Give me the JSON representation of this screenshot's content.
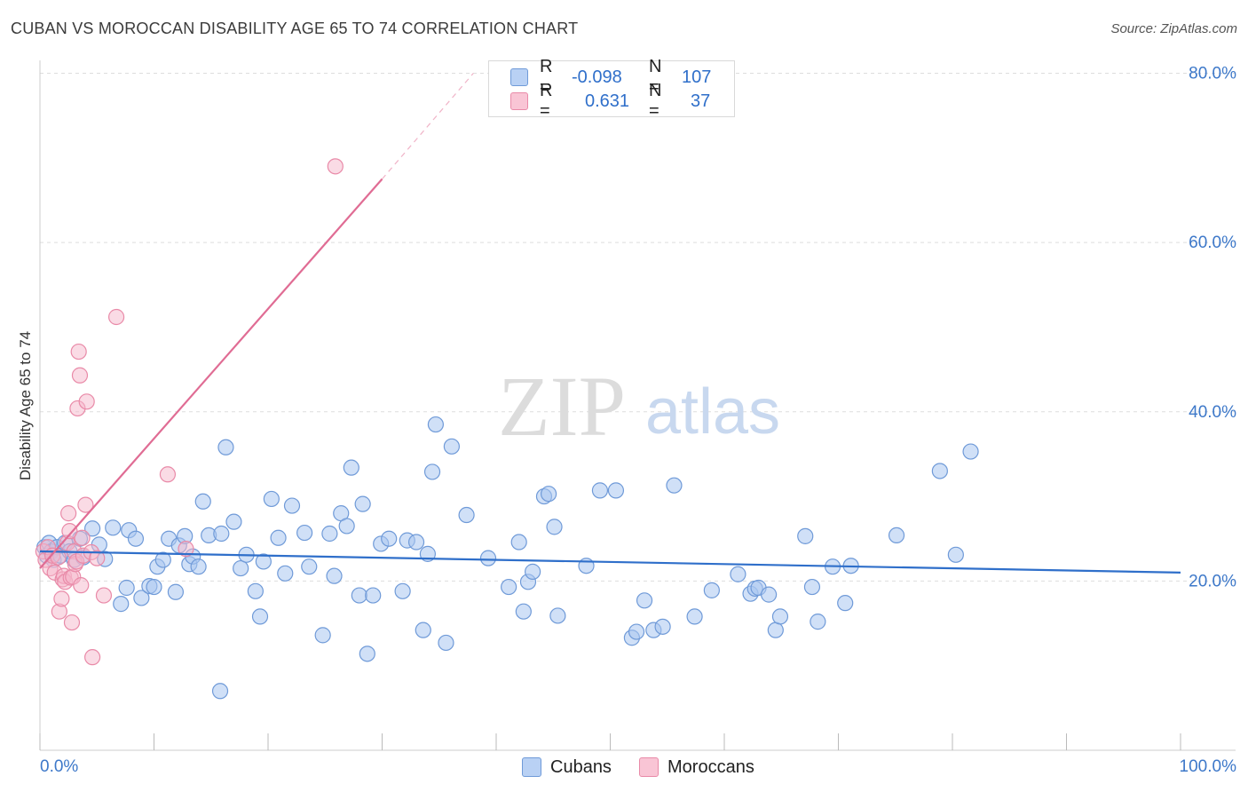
{
  "header": {
    "title": "CUBAN VS MOROCCAN DISABILITY AGE 65 TO 74 CORRELATION CHART",
    "source": "Source: ZipAtlas.com"
  },
  "watermark": {
    "zip": "ZIP",
    "atlas": "atlas"
  },
  "legend_top": {
    "rows": [
      {
        "r_label": "R =",
        "r_value": "-0.098",
        "n_label": "N =",
        "n_value": "107"
      },
      {
        "r_label": "R =",
        "r_value": "0.631",
        "n_label": "N =",
        "n_value": "37"
      }
    ]
  },
  "legend_bottom": {
    "cubans": "Cubans",
    "moroccans": "Moroccans"
  },
  "colors": {
    "cubans_fill": "#a9c6f0",
    "cubans_stroke": "#6f9ad8",
    "cubans_line": "#2f6fca",
    "moroccans_fill": "#f6b8cb",
    "moroccans_stroke": "#e98aa8",
    "moroccans_line": "#e06c94",
    "axis_label": "#3d78c9",
    "grid": "#dddddd"
  },
  "chart_data": {
    "type": "scatter",
    "title": "CUBAN VS MOROCCAN DISABILITY AGE 65 TO 74 CORRELATION CHART",
    "xlabel": "",
    "ylabel": "Disability Age 65 to 74",
    "xlim": [
      0,
      100
    ],
    "ylim": [
      0,
      80
    ],
    "x_tick_labels": [
      "0.0%",
      "100.0%"
    ],
    "y_ticks": [
      20,
      40,
      60,
      80
    ],
    "y_tick_labels": [
      "20.0%",
      "40.0%",
      "60.0%",
      "80.0%"
    ],
    "grid": true,
    "legend_placement": "bottom",
    "series": [
      {
        "name": "Cubans",
        "R": -0.098,
        "N": 107,
        "trend": {
          "x": [
            0,
            100
          ],
          "y": [
            23.5,
            21.0
          ]
        },
        "points": [
          [
            0.4,
            24.0
          ],
          [
            0.6,
            23.0
          ],
          [
            0.8,
            24.5
          ],
          [
            1.0,
            23.5
          ],
          [
            1.2,
            22.5
          ],
          [
            1.5,
            24.0
          ],
          [
            1.8,
            23.0
          ],
          [
            2.2,
            24.5
          ],
          [
            2.6,
            23.5
          ],
          [
            3.0,
            22.5
          ],
          [
            3.5,
            25.0
          ],
          [
            3.8,
            22.8
          ],
          [
            4.6,
            26.2
          ],
          [
            5.2,
            24.3
          ],
          [
            5.7,
            22.6
          ],
          [
            6.4,
            26.3
          ],
          [
            7.1,
            17.3
          ],
          [
            7.6,
            19.2
          ],
          [
            7.8,
            26.0
          ],
          [
            8.4,
            25.0
          ],
          [
            8.9,
            18.0
          ],
          [
            9.6,
            19.4
          ],
          [
            10.0,
            19.3
          ],
          [
            10.3,
            21.7
          ],
          [
            10.8,
            22.5
          ],
          [
            11.3,
            25.0
          ],
          [
            11.9,
            18.7
          ],
          [
            12.2,
            24.2
          ],
          [
            12.7,
            25.3
          ],
          [
            13.1,
            22.0
          ],
          [
            13.4,
            22.9
          ],
          [
            13.9,
            21.7
          ],
          [
            14.3,
            29.4
          ],
          [
            14.8,
            25.4
          ],
          [
            15.9,
            25.6
          ],
          [
            16.3,
            35.8
          ],
          [
            17.0,
            27.0
          ],
          [
            17.6,
            21.5
          ],
          [
            18.1,
            23.1
          ],
          [
            18.9,
            18.8
          ],
          [
            19.3,
            15.8
          ],
          [
            19.6,
            22.3
          ],
          [
            20.3,
            29.7
          ],
          [
            20.9,
            25.1
          ],
          [
            21.5,
            20.9
          ],
          [
            22.1,
            28.9
          ],
          [
            23.2,
            25.7
          ],
          [
            23.6,
            21.7
          ],
          [
            24.8,
            13.6
          ],
          [
            25.4,
            25.6
          ],
          [
            25.8,
            20.6
          ],
          [
            26.4,
            28.0
          ],
          [
            26.9,
            26.5
          ],
          [
            27.3,
            33.4
          ],
          [
            28.0,
            18.3
          ],
          [
            28.3,
            29.1
          ],
          [
            28.7,
            11.4
          ],
          [
            29.2,
            18.3
          ],
          [
            29.9,
            24.4
          ],
          [
            30.6,
            25.0
          ],
          [
            31.8,
            18.8
          ],
          [
            32.2,
            24.8
          ],
          [
            33.0,
            24.6
          ],
          [
            33.6,
            14.2
          ],
          [
            34.0,
            23.2
          ],
          [
            34.4,
            32.9
          ],
          [
            34.7,
            38.5
          ],
          [
            35.6,
            12.7
          ],
          [
            36.1,
            35.9
          ],
          [
            37.4,
            27.8
          ],
          [
            39.3,
            22.7
          ],
          [
            41.1,
            19.3
          ],
          [
            42.0,
            24.6
          ],
          [
            42.4,
            16.4
          ],
          [
            42.8,
            19.9
          ],
          [
            43.2,
            21.1
          ],
          [
            44.2,
            30.0
          ],
          [
            44.6,
            30.3
          ],
          [
            45.1,
            26.4
          ],
          [
            45.4,
            15.9
          ],
          [
            47.9,
            21.8
          ],
          [
            49.1,
            30.7
          ],
          [
            50.5,
            30.7
          ],
          [
            51.9,
            13.3
          ],
          [
            52.3,
            14.0
          ],
          [
            53.0,
            17.7
          ],
          [
            53.8,
            14.2
          ],
          [
            54.6,
            14.6
          ],
          [
            55.6,
            31.3
          ],
          [
            57.4,
            15.8
          ],
          [
            58.9,
            18.9
          ],
          [
            61.2,
            20.8
          ],
          [
            62.3,
            18.5
          ],
          [
            62.7,
            19.1
          ],
          [
            63.0,
            19.2
          ],
          [
            63.9,
            18.4
          ],
          [
            64.5,
            14.2
          ],
          [
            64.9,
            15.8
          ],
          [
            67.1,
            25.3
          ],
          [
            67.7,
            19.3
          ],
          [
            68.2,
            15.2
          ],
          [
            69.5,
            21.7
          ],
          [
            70.6,
            17.4
          ],
          [
            71.1,
            21.8
          ],
          [
            75.1,
            25.4
          ],
          [
            78.9,
            33.0
          ],
          [
            80.3,
            23.1
          ],
          [
            81.6,
            35.3
          ],
          [
            15.8,
            7.0
          ]
        ]
      },
      {
        "name": "Moroccans",
        "R": 0.631,
        "N": 37,
        "trend": {
          "x": [
            0,
            30
          ],
          "y": [
            21.5,
            67.5
          ]
        },
        "trend_dashed": {
          "x": [
            30,
            38
          ],
          "y": [
            67.5,
            80.0
          ]
        },
        "points": [
          [
            0.3,
            23.5
          ],
          [
            0.5,
            22.5
          ],
          [
            0.7,
            24.0
          ],
          [
            0.9,
            21.5
          ],
          [
            1.1,
            23.0
          ],
          [
            1.3,
            21.0
          ],
          [
            1.6,
            22.8
          ],
          [
            1.7,
            16.4
          ],
          [
            1.9,
            17.9
          ],
          [
            2.0,
            20.2
          ],
          [
            2.1,
            20.6
          ],
          [
            2.2,
            19.9
          ],
          [
            2.4,
            24.5
          ],
          [
            2.5,
            28.0
          ],
          [
            2.6,
            25.9
          ],
          [
            2.7,
            20.4
          ],
          [
            2.8,
            15.1
          ],
          [
            2.9,
            20.5
          ],
          [
            3.0,
            23.5
          ],
          [
            3.1,
            22.0
          ],
          [
            3.2,
            22.3
          ],
          [
            3.3,
            40.4
          ],
          [
            3.4,
            47.1
          ],
          [
            3.5,
            44.3
          ],
          [
            3.6,
            19.5
          ],
          [
            3.7,
            25.1
          ],
          [
            3.8,
            23.0
          ],
          [
            4.0,
            29.0
          ],
          [
            4.1,
            41.2
          ],
          [
            4.5,
            23.4
          ],
          [
            4.6,
            11.0
          ],
          [
            5.0,
            22.7
          ],
          [
            5.6,
            18.3
          ],
          [
            6.7,
            51.2
          ],
          [
            11.2,
            32.6
          ],
          [
            12.8,
            23.8
          ],
          [
            25.9,
            69.0
          ]
        ]
      }
    ]
  }
}
